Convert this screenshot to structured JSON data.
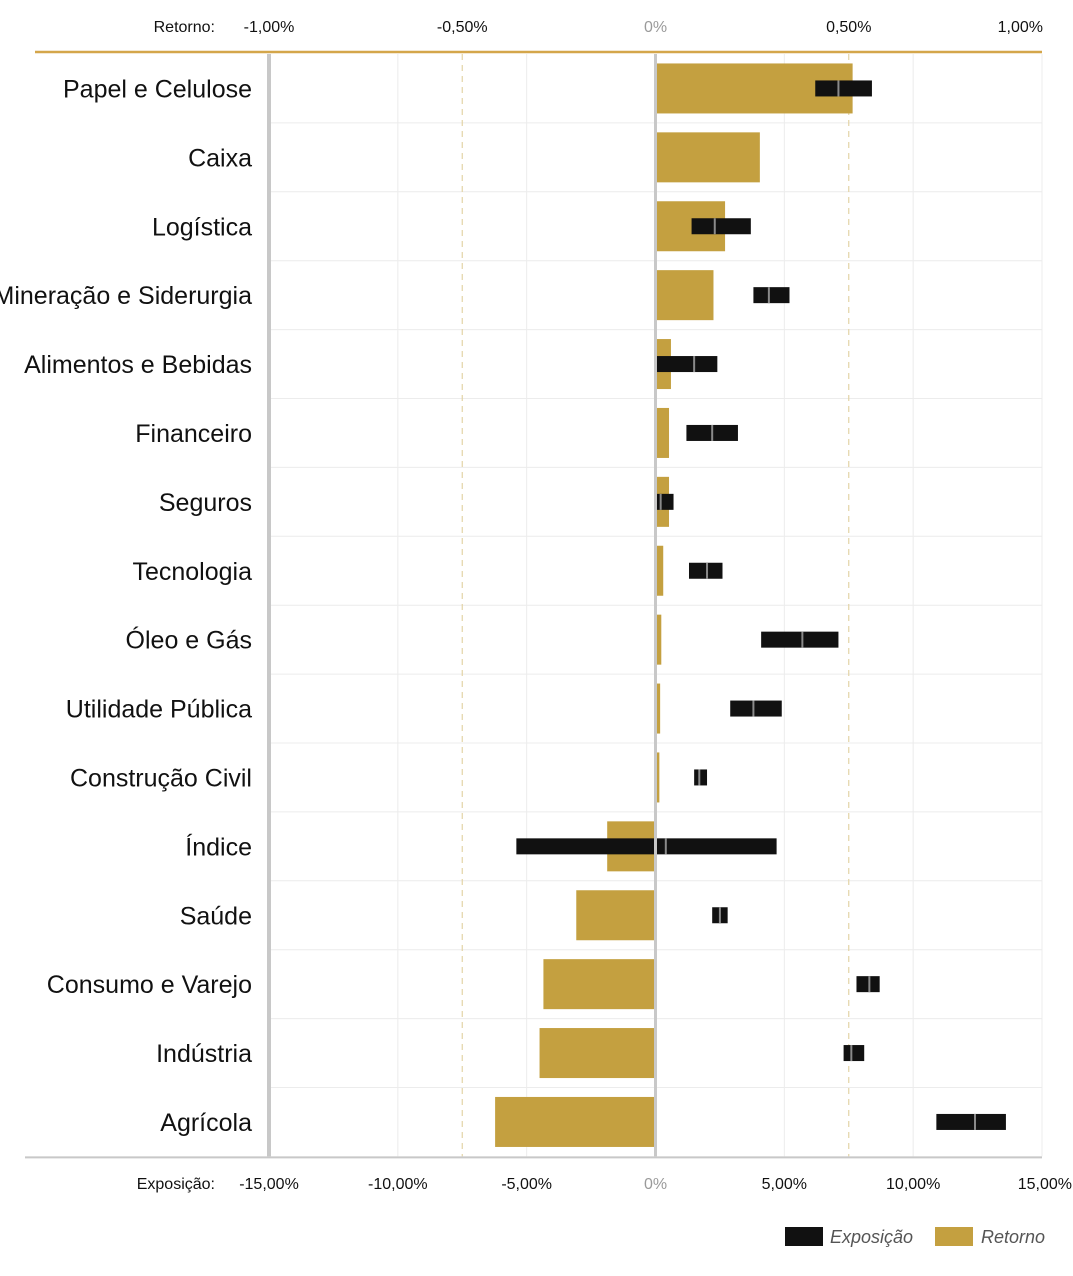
{
  "chart_data": {
    "type": "bar",
    "categories": [
      "Papel e Celulose",
      "Caixa",
      "Logística",
      "Mineração e Siderurgia",
      "Alimentos e Bebidas",
      "Financeiro",
      "Seguros",
      "Tecnologia",
      "Óleo e Gás",
      "Utilidade Pública",
      "Construção Civil",
      "Índice",
      "Saúde",
      "Consumo e Varejo",
      "Indústria",
      "Agrícola"
    ],
    "series": [
      {
        "name": "Retorno",
        "axis": "top",
        "unit": "%",
        "values": [
          0.51,
          0.27,
          0.18,
          0.15,
          0.04,
          0.035,
          0.035,
          0.02,
          0.015,
          0.012,
          0.01,
          -0.125,
          -0.205,
          -0.29,
          -0.3,
          -0.415
        ]
      },
      {
        "name": "Exposição",
        "axis": "bottom",
        "unit": "%",
        "ranges": [
          [
            6.2,
            8.4
          ],
          [
            null,
            null
          ],
          [
            1.4,
            3.7
          ],
          [
            3.8,
            5.2
          ],
          [
            0.0,
            2.4
          ],
          [
            1.2,
            3.2
          ],
          [
            0.0,
            0.7
          ],
          [
            1.3,
            2.6
          ],
          [
            4.1,
            7.1
          ],
          [
            2.9,
            4.9
          ],
          [
            1.5,
            2.0
          ],
          [
            -5.4,
            4.7
          ],
          [
            2.2,
            2.8
          ],
          [
            7.8,
            8.7
          ],
          [
            7.3,
            8.1
          ],
          [
            10.9,
            13.6
          ]
        ],
        "medians": [
          7.1,
          null,
          2.3,
          4.4,
          1.5,
          2.2,
          0.2,
          2.0,
          5.7,
          3.8,
          1.7,
          0.4,
          2.5,
          8.3,
          7.6,
          12.4
        ]
      }
    ],
    "top_axis": {
      "label": "Retorno:",
      "ticks": [
        "-1,00%",
        "-0,50%",
        "0%",
        "0,50%",
        "1,00%"
      ],
      "tick_values": [
        -1,
        -0.5,
        0,
        0.5,
        1
      ],
      "range": [
        -1,
        1
      ]
    },
    "bottom_axis": {
      "label": "Exposição:",
      "ticks": [
        "-15,00%",
        "-10,00%",
        "-5,00%",
        "0%",
        "5,00%",
        "10,00%",
        "15,00%"
      ],
      "tick_values": [
        -15,
        -10,
        -5,
        0,
        5,
        10,
        15
      ],
      "range": [
        -15,
        15
      ]
    },
    "legend": [
      {
        "name": "Exposição",
        "color": "#111111"
      },
      {
        "name": "Retorno",
        "color": "#c4a040"
      }
    ],
    "legend_position": "bottom-right",
    "grid": true,
    "colors": {
      "retorno": "#c4a040",
      "exposicao": "#111111",
      "accent_line": "#d4a64a",
      "zero_line": "#c8c8c8"
    }
  }
}
